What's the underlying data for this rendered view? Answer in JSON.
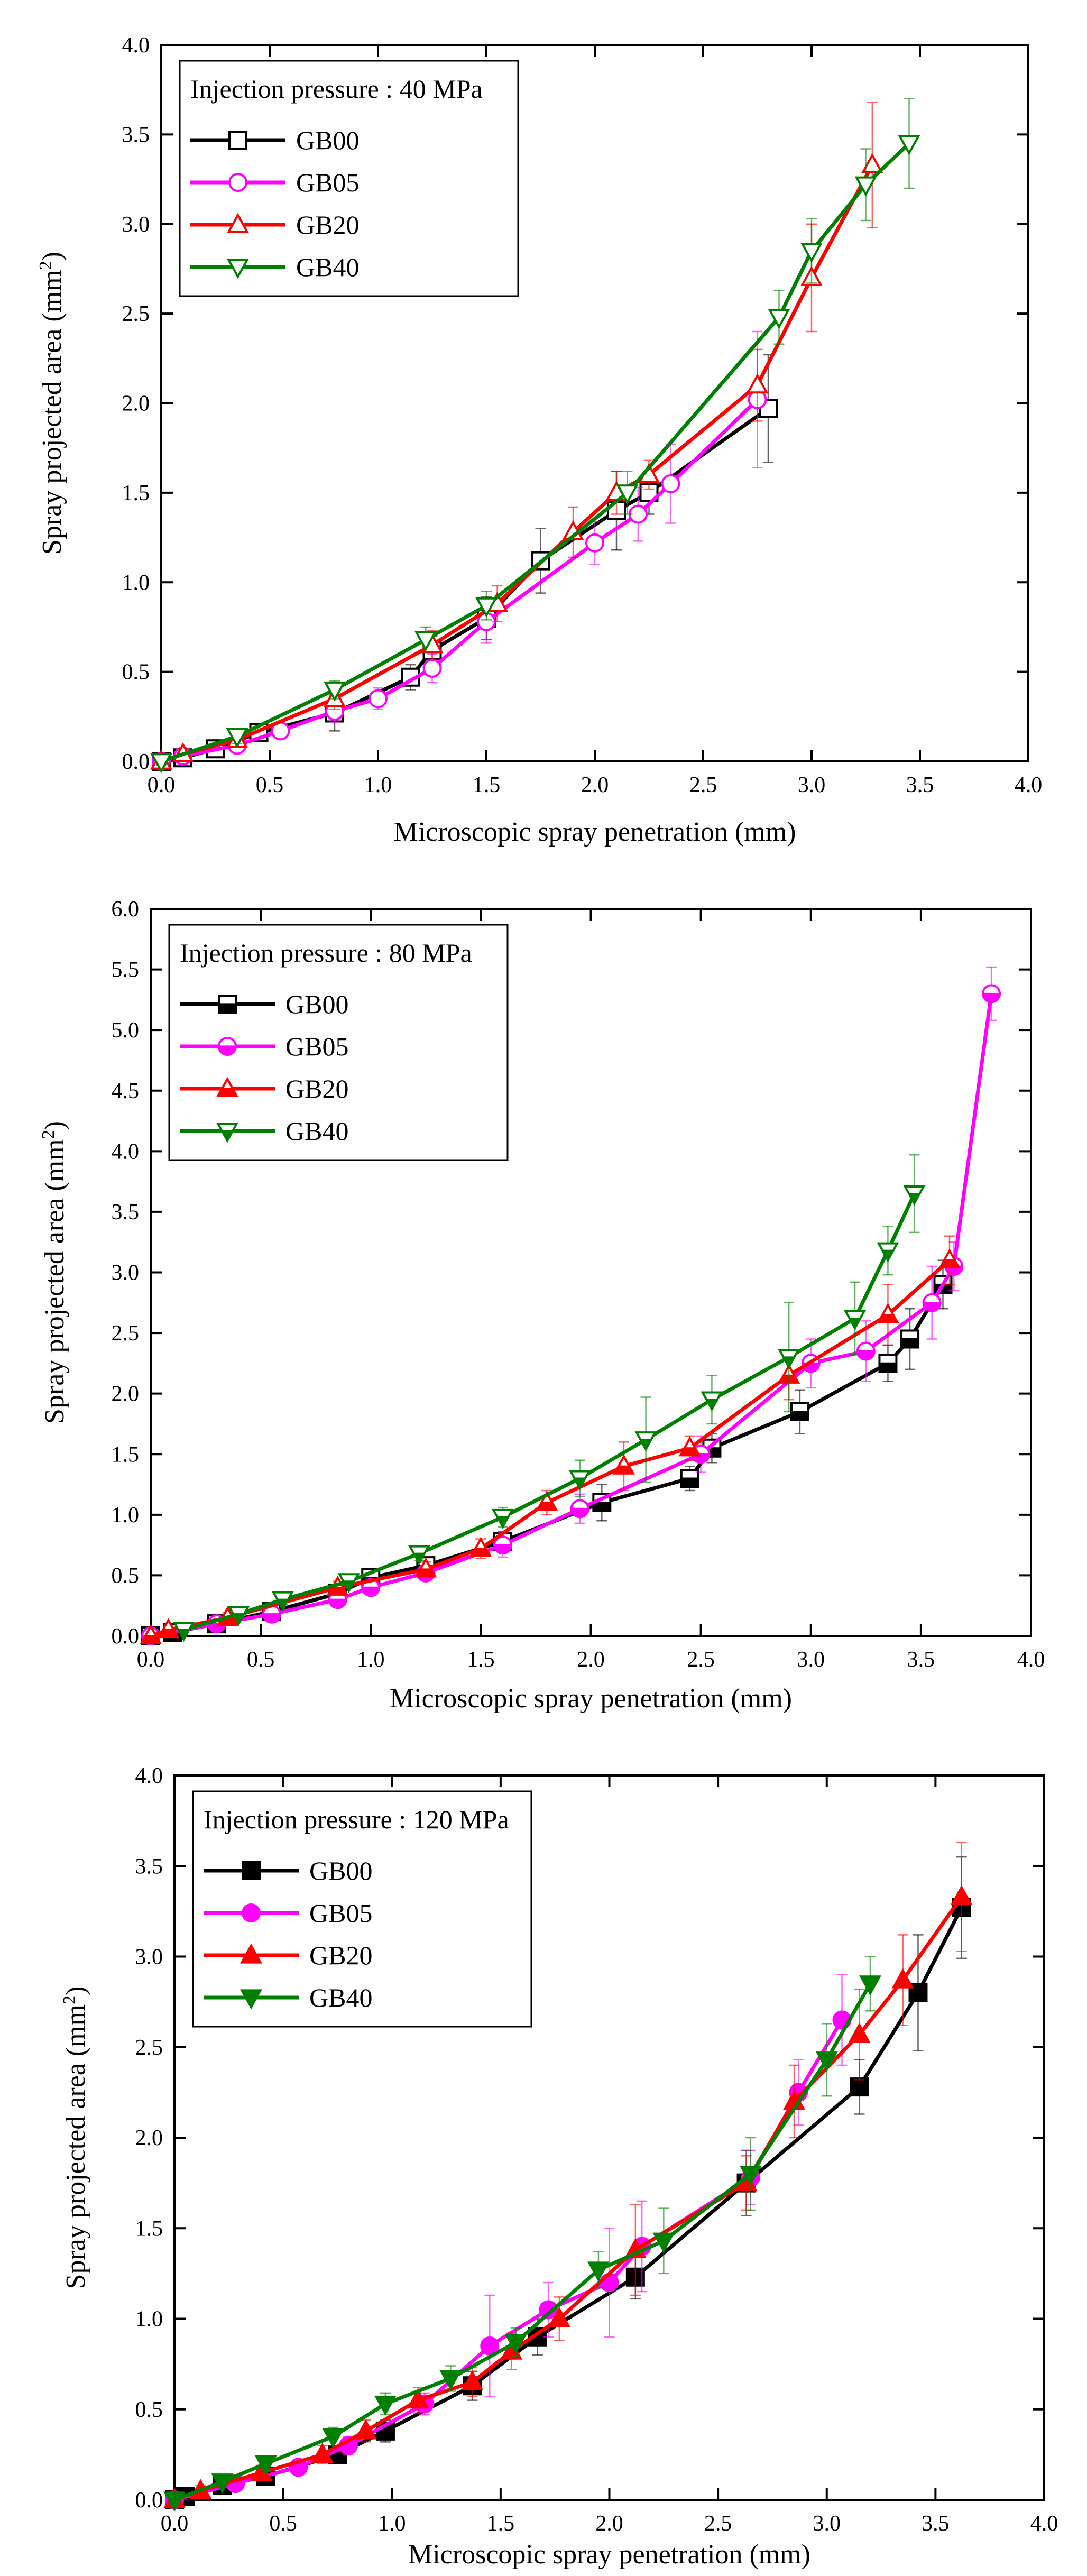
{
  "chart_data": [
    {
      "type": "line",
      "title": "Injection pressure : 40 MPa",
      "xlabel": "Microscopic spray penetration (mm)",
      "ylabel": "Spray projected area (mm",
      "ylabel_sup": "2",
      "ylabel_close": ")",
      "xlim": [
        0,
        4.0
      ],
      "ylim": [
        0,
        4.0
      ],
      "xticks": [
        0,
        0.5,
        1.0,
        1.5,
        2.0,
        2.5,
        3.0,
        3.5,
        4.0
      ],
      "yticks": [
        0,
        0.5,
        1.0,
        1.5,
        2.0,
        2.5,
        3.0,
        3.5,
        4.0
      ],
      "xtick_labels": [
        "0.0",
        "0.5",
        "1.0",
        "1.5",
        "2.0",
        "2.5",
        "3.0",
        "3.5",
        "4.0"
      ],
      "ytick_labels": [
        "0.0",
        "0.5",
        "1.0",
        "1.5",
        "2.0",
        "2.5",
        "3.0",
        "3.5",
        "4.0"
      ],
      "legend_position": "top-left",
      "series": [
        {
          "name": "GB00",
          "color": "#000000",
          "marker": "square",
          "filled": false,
          "x": [
            0.0,
            0.1,
            0.25,
            0.45,
            0.8,
            1.15,
            1.25,
            1.5,
            1.75,
            2.1,
            2.25,
            2.8
          ],
          "y": [
            0.0,
            0.02,
            0.07,
            0.16,
            0.27,
            0.47,
            0.62,
            0.8,
            1.12,
            1.4,
            1.5,
            1.97
          ],
          "err": [
            0.02,
            0.02,
            0.03,
            0.04,
            0.1,
            0.07,
            0.08,
            0.12,
            0.18,
            0.22,
            0.12,
            0.3
          ]
        },
        {
          "name": "GB05",
          "color": "#ff00ff",
          "marker": "circle",
          "filled": false,
          "x": [
            0.0,
            0.1,
            0.35,
            0.55,
            0.8,
            1.0,
            1.25,
            1.5,
            2.0,
            2.2,
            2.35,
            2.75
          ],
          "y": [
            0.0,
            0.03,
            0.09,
            0.17,
            0.28,
            0.35,
            0.52,
            0.78,
            1.22,
            1.38,
            1.55,
            2.02
          ],
          "err": [
            0.02,
            0.02,
            0.03,
            0.04,
            0.06,
            0.06,
            0.08,
            0.12,
            0.12,
            0.15,
            0.22,
            0.38
          ]
        },
        {
          "name": "GB20",
          "color": "#ff0000",
          "marker": "triangle-up",
          "filled": false,
          "x": [
            0.0,
            0.1,
            0.35,
            0.8,
            1.25,
            1.55,
            1.9,
            2.1,
            2.25,
            2.75,
            3.0,
            3.28
          ],
          "y": [
            0.0,
            0.04,
            0.12,
            0.35,
            0.65,
            0.88,
            1.28,
            1.5,
            1.6,
            2.1,
            2.7,
            3.33
          ],
          "err": [
            0.02,
            0.03,
            0.04,
            0.06,
            0.08,
            0.1,
            0.14,
            0.12,
            0.08,
            0.2,
            0.3,
            0.35
          ]
        },
        {
          "name": "GB40",
          "color": "#008000",
          "marker": "triangle-down",
          "filled": false,
          "x": [
            0.0,
            0.35,
            0.8,
            1.22,
            1.5,
            2.15,
            2.85,
            3.0,
            3.25,
            3.45
          ],
          "y": [
            0.0,
            0.14,
            0.4,
            0.68,
            0.87,
            1.5,
            2.48,
            2.85,
            3.22,
            3.45
          ],
          "err": [
            0.02,
            0.04,
            0.05,
            0.07,
            0.08,
            0.12,
            0.15,
            0.18,
            0.2,
            0.25
          ]
        }
      ]
    },
    {
      "type": "line",
      "title": "Injection pressure :  80 MPa",
      "xlabel": "Microscopic spray penetration (mm)",
      "ylabel": "Spray projected area (mm",
      "ylabel_sup": "2",
      "ylabel_close": ")",
      "xlim": [
        0,
        4.0
      ],
      "ylim": [
        0,
        6.0
      ],
      "xticks": [
        0,
        0.5,
        1.0,
        1.5,
        2.0,
        2.5,
        3.0,
        3.5,
        4.0
      ],
      "yticks": [
        0,
        0.5,
        1.0,
        1.5,
        2.0,
        2.5,
        3.0,
        3.5,
        4.0,
        4.5,
        5.0,
        5.5,
        6.0
      ],
      "xtick_labels": [
        "0.0",
        "0.5",
        "1.0",
        "1.5",
        "2.0",
        "2.5",
        "3.0",
        "3.5",
        "4.0"
      ],
      "ytick_labels": [
        "0.0",
        "0.5",
        "1.0",
        "1.5",
        "2.0",
        "2.5",
        "3.0",
        "3.5",
        "4.0",
        "4.5",
        "5.0",
        "5.5",
        "6.0"
      ],
      "legend_position": "top-left",
      "series": [
        {
          "name": "GB00",
          "color": "#000000",
          "marker": "square",
          "filled": "half",
          "x": [
            0.0,
            0.1,
            0.3,
            0.55,
            0.85,
            1.0,
            1.25,
            1.6,
            2.05,
            2.45,
            2.55,
            2.95,
            3.35,
            3.45,
            3.6
          ],
          "y": [
            0.0,
            0.03,
            0.1,
            0.2,
            0.35,
            0.48,
            0.58,
            0.78,
            1.1,
            1.3,
            1.55,
            1.85,
            2.25,
            2.45,
            2.9
          ],
          "err": [
            0.02,
            0.02,
            0.03,
            0.04,
            0.05,
            0.05,
            0.06,
            0.08,
            0.15,
            0.1,
            0.12,
            0.18,
            0.15,
            0.25,
            0.2
          ]
        },
        {
          "name": "GB05",
          "color": "#ff00ff",
          "marker": "circle",
          "filled": "half",
          "x": [
            0.0,
            0.3,
            0.55,
            0.85,
            1.0,
            1.25,
            1.6,
            1.95,
            2.5,
            3.0,
            3.25,
            3.55,
            3.65,
            3.82
          ],
          "y": [
            0.0,
            0.1,
            0.18,
            0.3,
            0.4,
            0.52,
            0.75,
            1.05,
            1.5,
            2.25,
            2.35,
            2.75,
            3.05,
            5.3
          ],
          "err": [
            0.02,
            0.03,
            0.04,
            0.05,
            0.05,
            0.06,
            0.1,
            0.12,
            0.15,
            0.2,
            0.25,
            0.3,
            0.2,
            0.22
          ]
        },
        {
          "name": "GB20",
          "color": "#ff0000",
          "marker": "triangle-up",
          "filled": "half",
          "x": [
            0.0,
            0.08,
            0.35,
            0.85,
            1.25,
            1.5,
            1.8,
            2.15,
            2.45,
            2.9,
            3.35,
            3.63
          ],
          "y": [
            0.0,
            0.05,
            0.15,
            0.4,
            0.55,
            0.72,
            1.1,
            1.4,
            1.55,
            2.15,
            2.65,
            3.1
          ],
          "err": [
            0.02,
            0.03,
            0.04,
            0.05,
            0.06,
            0.08,
            0.1,
            0.2,
            0.1,
            0.2,
            0.25,
            0.2
          ]
        },
        {
          "name": "GB40",
          "color": "#008000",
          "marker": "triangle-down",
          "filled": "half",
          "x": [
            0.15,
            0.4,
            0.6,
            0.9,
            1.22,
            1.6,
            1.95,
            2.25,
            2.55,
            2.9,
            3.2,
            3.35,
            3.47
          ],
          "y": [
            0.05,
            0.18,
            0.3,
            0.45,
            0.68,
            0.98,
            1.3,
            1.62,
            1.95,
            2.3,
            2.62,
            3.18,
            3.65
          ],
          "err": [
            0.02,
            0.03,
            0.04,
            0.05,
            0.06,
            0.08,
            0.15,
            0.35,
            0.2,
            0.45,
            0.3,
            0.2,
            0.32
          ]
        }
      ]
    },
    {
      "type": "line",
      "title": "Injection pressure : 120 MPa",
      "xlabel": "Microscopic spray penetration (mm)",
      "ylabel": "Spray projected area (mm",
      "ylabel_sup": "2",
      "ylabel_close": ")",
      "xlim": [
        0,
        4.0
      ],
      "ylim": [
        0,
        4.0
      ],
      "xticks": [
        0,
        0.5,
        1.0,
        1.5,
        2.0,
        2.5,
        3.0,
        3.5,
        4.0
      ],
      "yticks": [
        0,
        0.5,
        1.0,
        1.5,
        2.0,
        2.5,
        3.0,
        3.5,
        4.0
      ],
      "xtick_labels": [
        "0.0",
        "0.5",
        "1.0",
        "1.5",
        "2.0",
        "2.5",
        "3.0",
        "3.5",
        "4.0"
      ],
      "ytick_labels": [
        "0.0",
        "0.5",
        "1.0",
        "1.5",
        "2.0",
        "2.5",
        "3.0",
        "3.5",
        "4.0"
      ],
      "legend_position": "top-left",
      "series": [
        {
          "name": "GB00",
          "color": "#000000",
          "marker": "square",
          "filled": true,
          "x": [
            0.0,
            0.05,
            0.22,
            0.42,
            0.75,
            0.97,
            1.37,
            1.67,
            2.12,
            2.63,
            3.15,
            3.42,
            3.62
          ],
          "y": [
            0.0,
            0.02,
            0.08,
            0.13,
            0.25,
            0.38,
            0.63,
            0.9,
            1.23,
            1.75,
            2.28,
            2.8,
            3.27
          ],
          "err": [
            0.02,
            0.02,
            0.03,
            0.04,
            0.05,
            0.06,
            0.08,
            0.1,
            0.12,
            0.18,
            0.15,
            0.32,
            0.28
          ]
        },
        {
          "name": "GB05",
          "color": "#ff00ff",
          "marker": "circle",
          "filled": true,
          "x": [
            0.0,
            0.28,
            0.57,
            0.8,
            1.15,
            1.45,
            1.72,
            2.0,
            2.15,
            2.65,
            2.87,
            3.07
          ],
          "y": [
            0.0,
            0.09,
            0.18,
            0.3,
            0.53,
            0.85,
            1.05,
            1.2,
            1.4,
            1.78,
            2.25,
            2.65
          ],
          "err": [
            0.02,
            0.03,
            0.04,
            0.05,
            0.06,
            0.28,
            0.15,
            0.3,
            0.25,
            0.15,
            0.18,
            0.25
          ]
        },
        {
          "name": "GB20",
          "color": "#ff0000",
          "marker": "triangle-up",
          "filled": true,
          "x": [
            0.0,
            0.12,
            0.4,
            0.68,
            0.88,
            1.12,
            1.37,
            1.55,
            1.77,
            2.12,
            2.63,
            2.85,
            3.15,
            3.35,
            3.62
          ],
          "y": [
            0.0,
            0.05,
            0.15,
            0.25,
            0.38,
            0.55,
            0.65,
            0.82,
            1.0,
            1.38,
            1.75,
            2.2,
            2.57,
            2.87,
            3.33
          ],
          "err": [
            0.02,
            0.03,
            0.04,
            0.05,
            0.06,
            0.07,
            0.08,
            0.1,
            0.12,
            0.25,
            0.15,
            0.2,
            0.25,
            0.25,
            0.3
          ]
        },
        {
          "name": "GB40",
          "color": "#008000",
          "marker": "triangle-down",
          "filled": true,
          "x": [
            0.0,
            0.22,
            0.42,
            0.73,
            0.97,
            1.27,
            1.57,
            1.95,
            2.25,
            2.65,
            3.0,
            3.2
          ],
          "y": [
            0.0,
            0.1,
            0.2,
            0.35,
            0.53,
            0.67,
            0.87,
            1.27,
            1.43,
            1.8,
            2.43,
            2.85
          ],
          "err": [
            0.02,
            0.03,
            0.04,
            0.05,
            0.06,
            0.07,
            0.08,
            0.1,
            0.18,
            0.2,
            0.2,
            0.15
          ]
        }
      ]
    }
  ]
}
